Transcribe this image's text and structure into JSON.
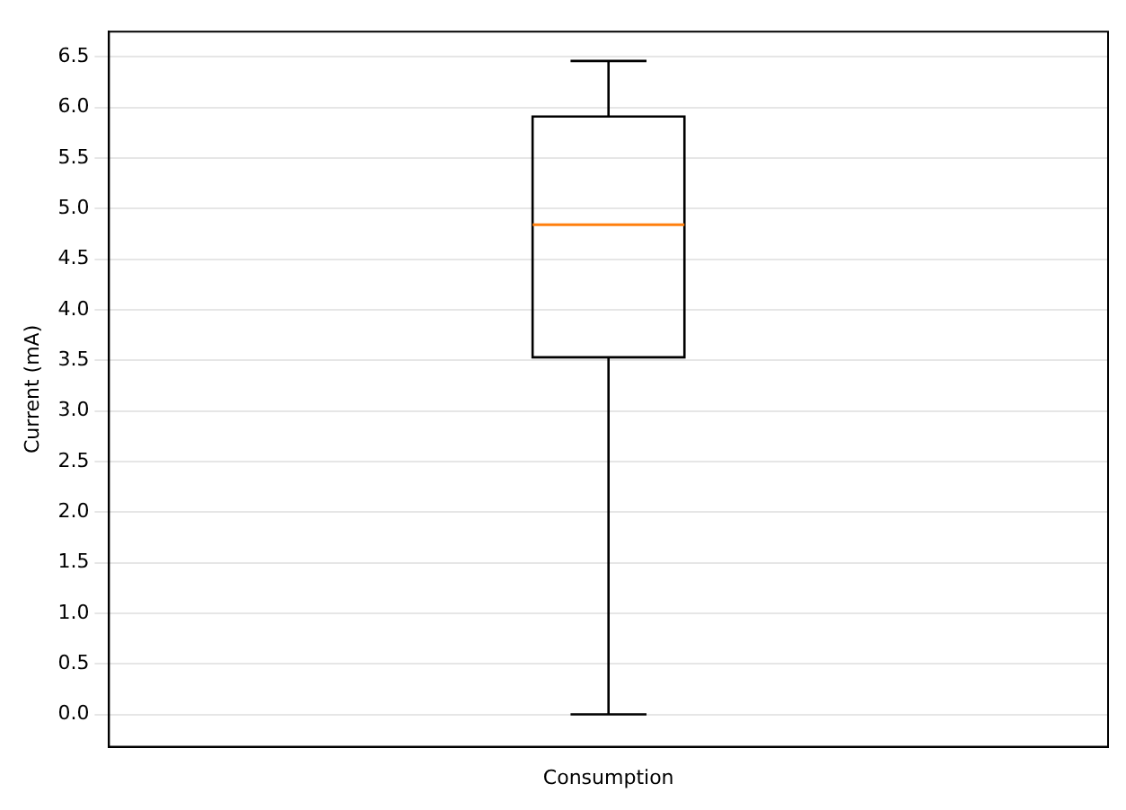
{
  "chart_data": {
    "type": "box",
    "ylabel": "Current (mA)",
    "categories": [
      "Consumption"
    ],
    "boxes": [
      {
        "low": 0,
        "q1": 3.53,
        "median": 4.84,
        "q3": 5.91,
        "high": 6.46
      }
    ],
    "color": "#000000",
    "ylim": [
      -0.32,
      6.75
    ],
    "yticks": [
      {
        "value": 0,
        "label": "0.0"
      },
      0.5,
      {
        "value": 1,
        "label": "1.0"
      },
      1.5,
      {
        "value": 2,
        "label": "2.0"
      },
      2.5,
      {
        "value": 3,
        "label": "3.0"
      },
      3.5,
      {
        "value": 4,
        "label": "4.0"
      },
      4.5,
      {
        "value": 5,
        "label": "5.0"
      },
      5.5,
      {
        "value": 6,
        "label": "6.0"
      },
      6.5
    ],
    "grid": "y",
    "legend": false
  }
}
